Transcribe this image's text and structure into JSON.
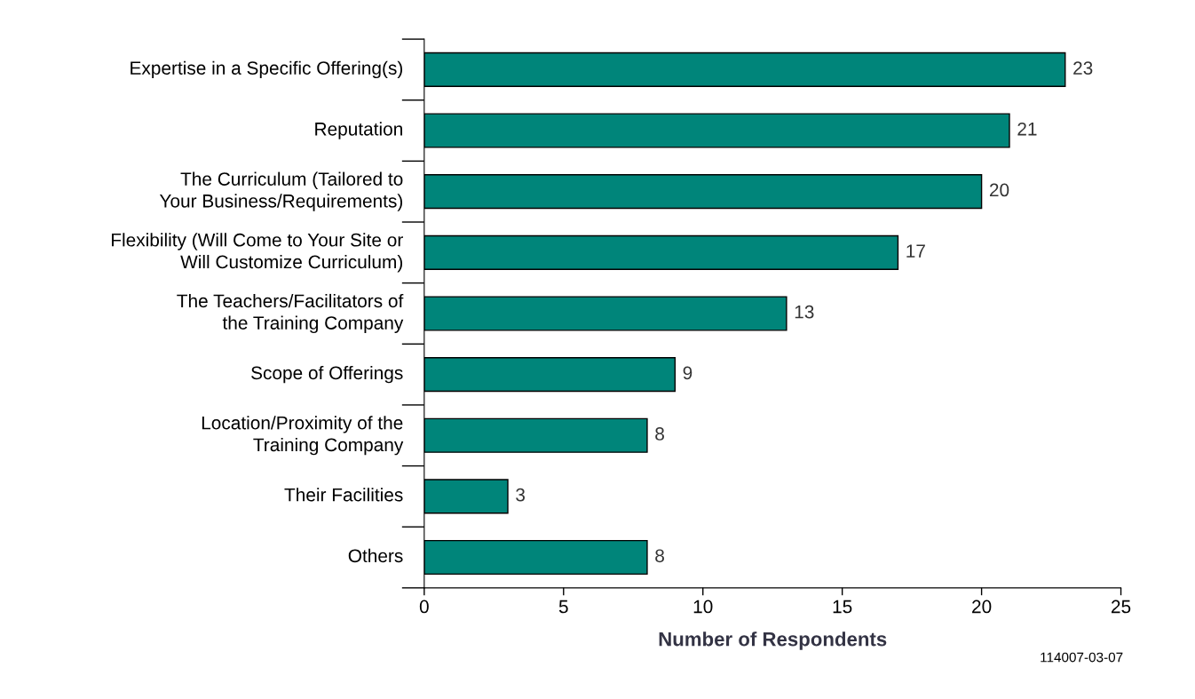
{
  "chart_data": {
    "type": "bar",
    "orientation": "horizontal",
    "xlabel": "Number of Respondents",
    "categories": [
      "Expertise in a Specific Offering(s)",
      "Reputation",
      "The Curriculum (Tailored to\nYour Business/Requirements)",
      "Flexibility (Will Come to Your Site or\nWill Customize Curriculum)",
      "The Teachers/Facilitators of\nthe Training Company",
      "Scope of Offerings",
      "Location/Proximity of the\nTraining Company",
      "Their Facilities",
      "Others"
    ],
    "values": [
      23,
      21,
      20,
      17,
      13,
      9,
      8,
      3,
      8
    ],
    "color": "#00857a",
    "xlim": [
      0,
      25
    ],
    "xticks": [
      0,
      5,
      10,
      15,
      20,
      25
    ],
    "data_labels": true,
    "grid": false,
    "annotations": [
      "114007-03-07"
    ]
  }
}
